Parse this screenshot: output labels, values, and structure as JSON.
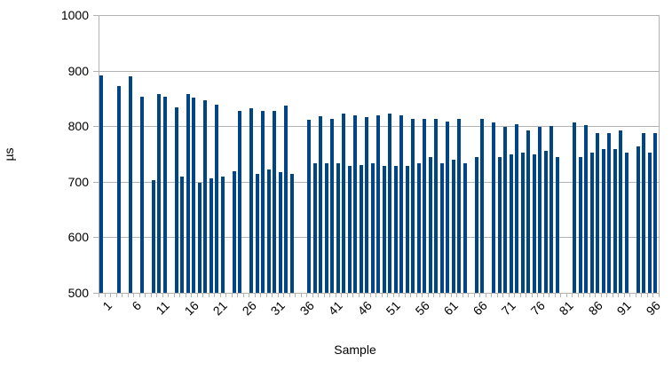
{
  "chart_data": {
    "type": "bar",
    "title": "",
    "xlabel": "Sample",
    "ylabel": "µs",
    "ylim": [
      500,
      1000
    ],
    "y_ticks": [
      500,
      600,
      700,
      800,
      900,
      1000
    ],
    "x_tick_labels": [
      "1",
      "6",
      "11",
      "16",
      "21",
      "26",
      "31",
      "36",
      "41",
      "46",
      "51",
      "56",
      "61",
      "66",
      "71",
      "76",
      "81",
      "86",
      "91",
      "96"
    ],
    "x_tick_samples": [
      1,
      6,
      11,
      16,
      21,
      26,
      31,
      36,
      41,
      46,
      51,
      56,
      61,
      66,
      71,
      76,
      81,
      86,
      91,
      96
    ],
    "n_samples": 97,
    "grid": true,
    "legend": "none",
    "values": [
      892,
      null,
      null,
      873,
      null,
      889,
      null,
      853,
      null,
      703,
      858,
      853,
      null,
      834,
      709,
      858,
      851,
      698,
      847,
      706,
      838,
      710,
      null,
      719,
      828,
      null,
      832,
      714,
      827,
      722,
      828,
      717,
      837,
      714,
      null,
      null,
      812,
      733,
      818,
      733,
      813,
      733,
      823,
      728,
      819,
      730,
      817,
      733,
      819,
      728,
      823,
      729,
      819,
      728,
      813,
      733,
      813,
      744,
      813,
      733,
      808,
      739,
      813,
      733,
      null,
      744,
      813,
      null,
      807,
      744,
      798,
      749,
      803,
      753,
      793,
      749,
      798,
      755,
      801,
      744,
      null,
      null,
      807,
      744,
      802,
      753,
      788,
      758,
      787,
      758,
      793,
      753,
      null,
      763,
      788,
      753,
      788
    ],
    "colors": {
      "bar": "#004586",
      "grid": "#b3b3b3",
      "axis": "#b3b3b3",
      "text": "#000000",
      "background": "#ffffff"
    }
  }
}
